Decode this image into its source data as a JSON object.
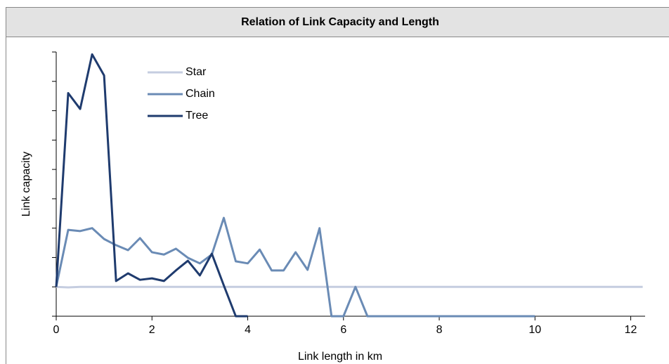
{
  "chart_data": {
    "type": "line",
    "title": "Relation of Link Capacity and Length",
    "xlabel": "Link length in km",
    "ylabel": "Link capacity",
    "xlim": [
      0,
      12.3
    ],
    "xticks": [
      0,
      2,
      4,
      6,
      8,
      10,
      12
    ],
    "ylim": [
      0,
      9
    ],
    "yticks": [
      0,
      1,
      2,
      3,
      4,
      5,
      6,
      7,
      8,
      9
    ],
    "grid": false,
    "legend": "upper left",
    "series": [
      {
        "name": "Star",
        "color": "#c5cde0",
        "x": [
          0,
          0.25,
          0.5,
          12.25
        ],
        "values": [
          1,
          0.98,
          1,
          1
        ]
      },
      {
        "name": "Chain",
        "color": "#6a8bb5",
        "x": [
          0,
          0.25,
          0.5,
          0.75,
          1,
          1.25,
          1.5,
          1.75,
          2,
          2.25,
          2.5,
          2.75,
          3,
          3.25,
          3.5,
          3.75,
          4,
          4.25,
          4.5,
          4.75,
          5,
          5.25,
          5.5,
          5.75,
          6,
          6.25,
          6.5,
          10
        ],
        "values": [
          1,
          2.94,
          2.9,
          3,
          2.63,
          2.42,
          2.25,
          2.66,
          2.18,
          2.1,
          2.3,
          1.99,
          1.8,
          2.1,
          3.35,
          1.87,
          1.8,
          2.27,
          1.56,
          1.56,
          2.18,
          1.58,
          3,
          0,
          0,
          1,
          0,
          0
        ]
      },
      {
        "name": "Tree",
        "color": "#1f3b6e",
        "x": [
          0,
          0.25,
          0.5,
          0.75,
          1,
          1.25,
          1.5,
          1.75,
          2,
          2.25,
          2.5,
          2.75,
          3,
          3.25,
          3.5,
          3.75,
          4
        ],
        "values": [
          1,
          7.6,
          7.06,
          8.92,
          8.2,
          1.2,
          1.46,
          1.24,
          1.29,
          1.2,
          1.56,
          1.89,
          1.39,
          2.13,
          1.05,
          0,
          0
        ]
      }
    ]
  }
}
